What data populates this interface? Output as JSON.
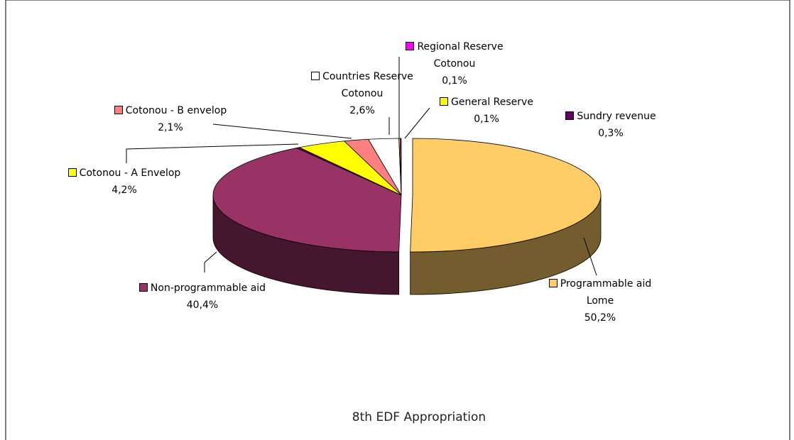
{
  "chart_data": {
    "type": "pie3d",
    "title": "8th EDF Appropriation",
    "categories": [
      "Programmable aid Lome",
      "Non-programmable aid",
      "Sundry revenue",
      "Cotonou - A Envelop",
      "Cotonou - B envelop",
      "Countries Reserve Cotonou",
      "General Reserve",
      "Regional Reserve Cotonou"
    ],
    "values": [
      50.2,
      40.4,
      0.3,
      4.2,
      2.1,
      2.6,
      0.1,
      0.1
    ],
    "value_labels": [
      "50,2%",
      "40,4%",
      "0,3%",
      "4,2%",
      "2,1%",
      "2,6%",
      "0,1%",
      "0,1%"
    ],
    "colors": [
      "#ffcc66",
      "#993366",
      "#660066",
      "#ffff00",
      "#ff8080",
      "#ffffff",
      "#ffff00",
      "#ff00ff"
    ]
  }
}
